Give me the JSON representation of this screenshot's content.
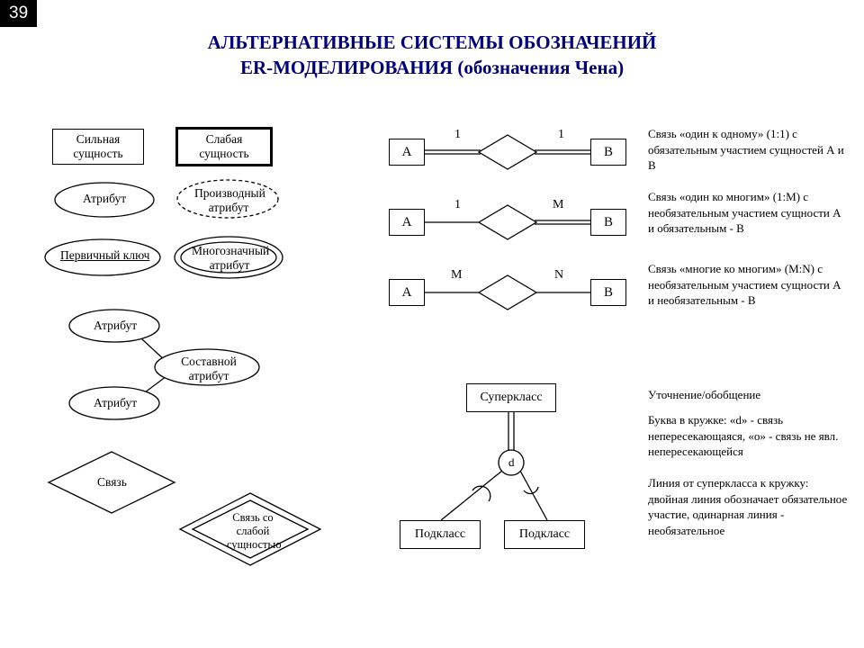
{
  "slide_number": "39",
  "title_line1": "АЛЬТЕРНАТИВНЫЕ СИСТЕМЫ ОБОЗНАЧЕНИЙ",
  "title_line2": "ER-МОДЕЛИРОВАНИЯ (обозначения Чена)",
  "strong_entity": "Сильная\nсущность",
  "weak_entity": "Слабая\nсущность",
  "attribute": "Атрибут",
  "derived_attr": "Производный\nатрибут",
  "primary_key": "Первичный ключ",
  "multivalued": "Многозначный\nатрибут",
  "composite": "Составной\nатрибут",
  "attr2": "Атрибут",
  "attr3": "Атрибут",
  "relationship": "Связь",
  "weak_relationship": "Связь со\nслабой\nсущностью",
  "A": "A",
  "B": "B",
  "one": "1",
  "M": "M",
  "N": "N",
  "d": "d",
  "superclass": "Суперкласс",
  "subclass": "Подкласс",
  "rel1_desc": "Связь «один к одному» (1:1) с обязательным участием сущностей А и В",
  "rel2_desc": "Связь «один ко многим» (1:М) с необязательным участием сущности А и обязательным - В",
  "rel3_desc": "Связь «многие ко многим» (M:N) с необязательным участием сущности А и необязательным - В",
  "gen_title": "Уточнение/обобщение",
  "gen_text1": "Буква в кружке: «d» - связь непересекающаяся, «o» - связь не явл. непересекающейся",
  "gen_text2": "Линия от суперкласса к кружку: двойная линия обозначает обязательное участие, одинарная линия - необязательное",
  "colors": {
    "title": "#00006f",
    "stroke": "#000",
    "bg": "#fff"
  }
}
